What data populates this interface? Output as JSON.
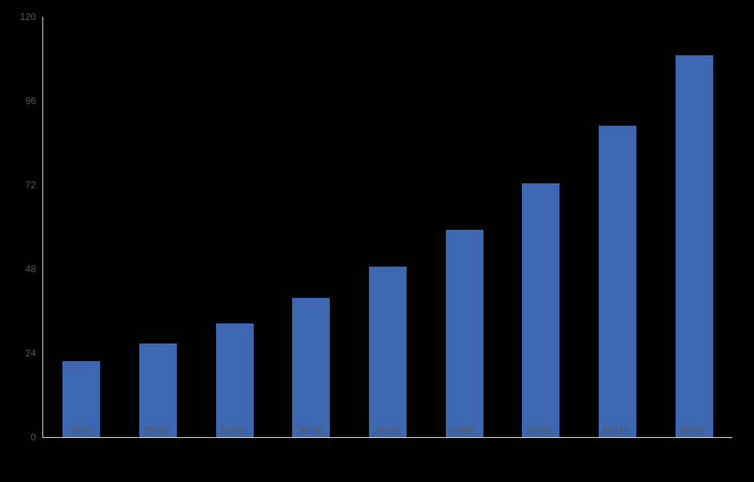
{
  "colors": {
    "background": "#000000",
    "bar": "#3E67B1",
    "axis_line": "#DCDCDC",
    "tick_label": "#595959"
  },
  "chart_data": {
    "type": "bar",
    "categories": [
      "2024",
      "2025E",
      "2026E",
      "2027E",
      "2028E",
      "2029E",
      "2030E",
      "2031E",
      "2032E"
    ],
    "values": [
      21.7,
      26.7,
      32.5,
      39.8,
      48.7,
      59.3,
      72.5,
      88.8,
      109
    ],
    "xlabel": "",
    "ylabel": "",
    "ylim": [
      0,
      120
    ],
    "yticks": [
      0,
      24,
      48,
      72,
      96,
      120
    ],
    "grid": false,
    "legend": "none",
    "series_count": 1
  }
}
